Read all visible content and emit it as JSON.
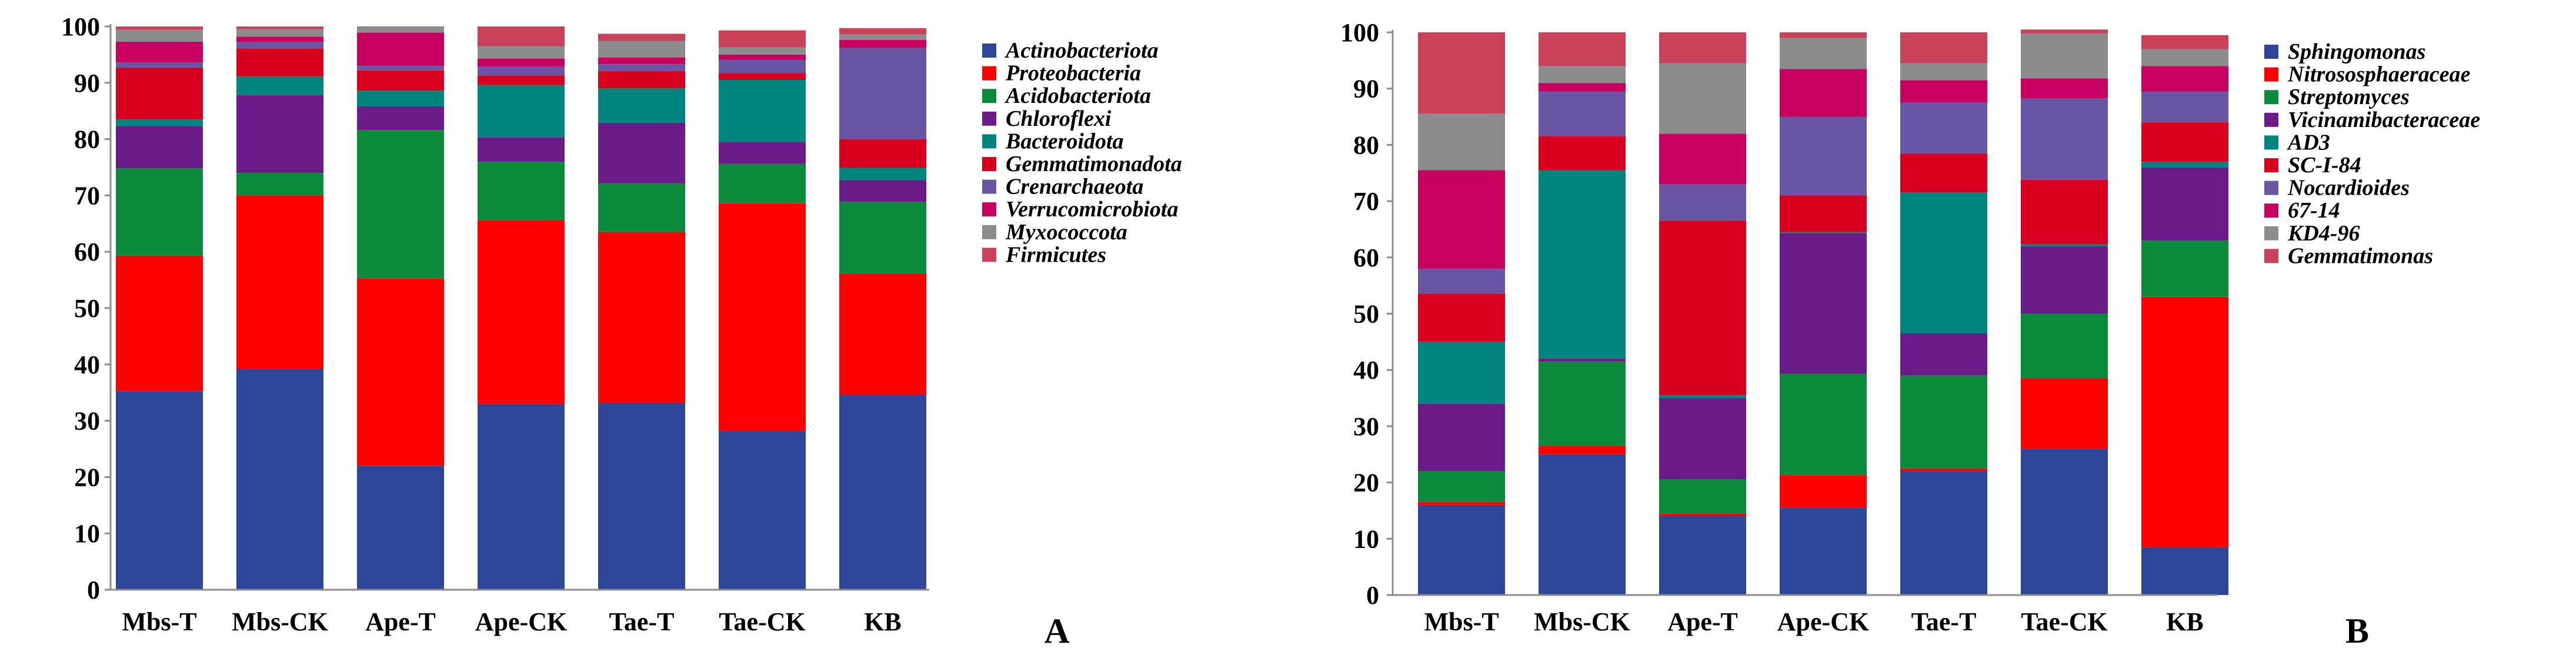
{
  "chart_data": [
    {
      "type": "bar",
      "stacked": true,
      "panel_label": "A",
      "categories": [
        "Mbs-T",
        "Mbs-CK",
        "Ape-T",
        "Ape-CK",
        "Tae-T",
        "Tae-CK",
        "KB"
      ],
      "ylim": [
        0,
        100
      ],
      "yticks": [
        0,
        10,
        20,
        30,
        40,
        50,
        60,
        70,
        80,
        90,
        100
      ],
      "legend_position": "right",
      "series": [
        {
          "name": "Actinobacteriota",
          "color": "#2e4698",
          "values": [
            35.2,
            39.2,
            22.0,
            33.0,
            33.2,
            28.2,
            34.6
          ]
        },
        {
          "name": "Proteobacteria",
          "color": "#ff0000",
          "values": [
            24.1,
            30.8,
            33.3,
            32.6,
            30.3,
            40.4,
            21.5
          ]
        },
        {
          "name": "Acidobacteriota",
          "color": "#0c8a3c",
          "values": [
            15.5,
            4.0,
            26.3,
            10.4,
            8.6,
            7.0,
            12.8
          ]
        },
        {
          "name": "Chloroflexi",
          "color": "#6a1b87",
          "values": [
            7.5,
            13.8,
            4.2,
            4.3,
            10.8,
            3.9,
            3.8
          ]
        },
        {
          "name": "Bacteroidota",
          "color": "#00847f",
          "values": [
            1.2,
            3.3,
            2.8,
            9.3,
            6.1,
            11.0,
            2.2
          ]
        },
        {
          "name": "Gemmatimonadota",
          "color": "#d7001e",
          "values": [
            9.2,
            5.0,
            3.6,
            1.7,
            3.1,
            1.2,
            5.1
          ]
        },
        {
          "name": "Crenarchaeota",
          "color": "#6a55a4",
          "values": [
            0.9,
            1.1,
            0.8,
            1.6,
            1.2,
            2.4,
            16.2
          ]
        },
        {
          "name": "Verrucomicrobiota",
          "color": "#c7005f",
          "values": [
            3.7,
            1.0,
            5.9,
            1.4,
            1.2,
            0.9,
            1.4
          ]
        },
        {
          "name": "Myxococcota",
          "color": "#8c8c8c",
          "values": [
            2.1,
            1.3,
            1.0,
            2.2,
            2.9,
            1.3,
            1.0
          ]
        },
        {
          "name": "Firmicutes",
          "color": "#c94158",
          "values": [
            0.6,
            0.5,
            0.1,
            3.5,
            1.3,
            3.0,
            1.1
          ]
        }
      ]
    },
    {
      "type": "bar",
      "stacked": true,
      "panel_label": "B",
      "categories": [
        "Mbs-T",
        "Mbs-CK",
        "Ape-T",
        "Ape-CK",
        "Tae-T",
        "Tae-CK",
        "KB"
      ],
      "ylim": [
        0,
        100
      ],
      "yticks": [
        0,
        10,
        20,
        30,
        40,
        50,
        60,
        70,
        80,
        90,
        100
      ],
      "legend_position": "right",
      "series": [
        {
          "name": "Sphingomonas",
          "color": "#2e4698",
          "values": [
            16.0,
            25.0,
            14.0,
            15.5,
            22.0,
            26.0,
            8.5
          ]
        },
        {
          "name": "Nitrososphaeraceae",
          "color": "#ff0000",
          "values": [
            0.5,
            1.5,
            0.5,
            5.8,
            0.5,
            12.5,
            44.5
          ]
        },
        {
          "name": "Streptomyces",
          "color": "#0c8a3c",
          "values": [
            5.5,
            15.0,
            6.0,
            18.0,
            16.5,
            11.5,
            10.0
          ]
        },
        {
          "name": "Vicinamibacteraceae",
          "color": "#6a1b87",
          "values": [
            12.0,
            0.5,
            14.5,
            25.0,
            7.5,
            12.0,
            13.0
          ]
        },
        {
          "name": "AD3",
          "color": "#00847f",
          "values": [
            11.0,
            33.5,
            0.5,
            0.2,
            25.0,
            0.3,
            1.0
          ]
        },
        {
          "name": "SC-I-84",
          "color": "#d7001e",
          "values": [
            8.5,
            6.0,
            31.0,
            6.5,
            7.0,
            11.5,
            7.0
          ]
        },
        {
          "name": "Nocardioides",
          "color": "#6a55a4",
          "values": [
            4.5,
            8.0,
            6.5,
            14.0,
            9.0,
            14.5,
            5.5
          ]
        },
        {
          "name": "67-14",
          "color": "#c7005f",
          "values": [
            17.5,
            1.5,
            9.0,
            8.5,
            4.0,
            3.5,
            4.5
          ]
        },
        {
          "name": "KD4-96",
          "color": "#8c8c8c",
          "values": [
            10.0,
            3.0,
            12.5,
            5.5,
            3.0,
            8.0,
            3.0
          ]
        },
        {
          "name": "Gemmatimonas",
          "color": "#c94158",
          "values": [
            14.5,
            6.0,
            5.5,
            1.0,
            5.5,
            0.7,
            2.5
          ]
        }
      ]
    }
  ]
}
